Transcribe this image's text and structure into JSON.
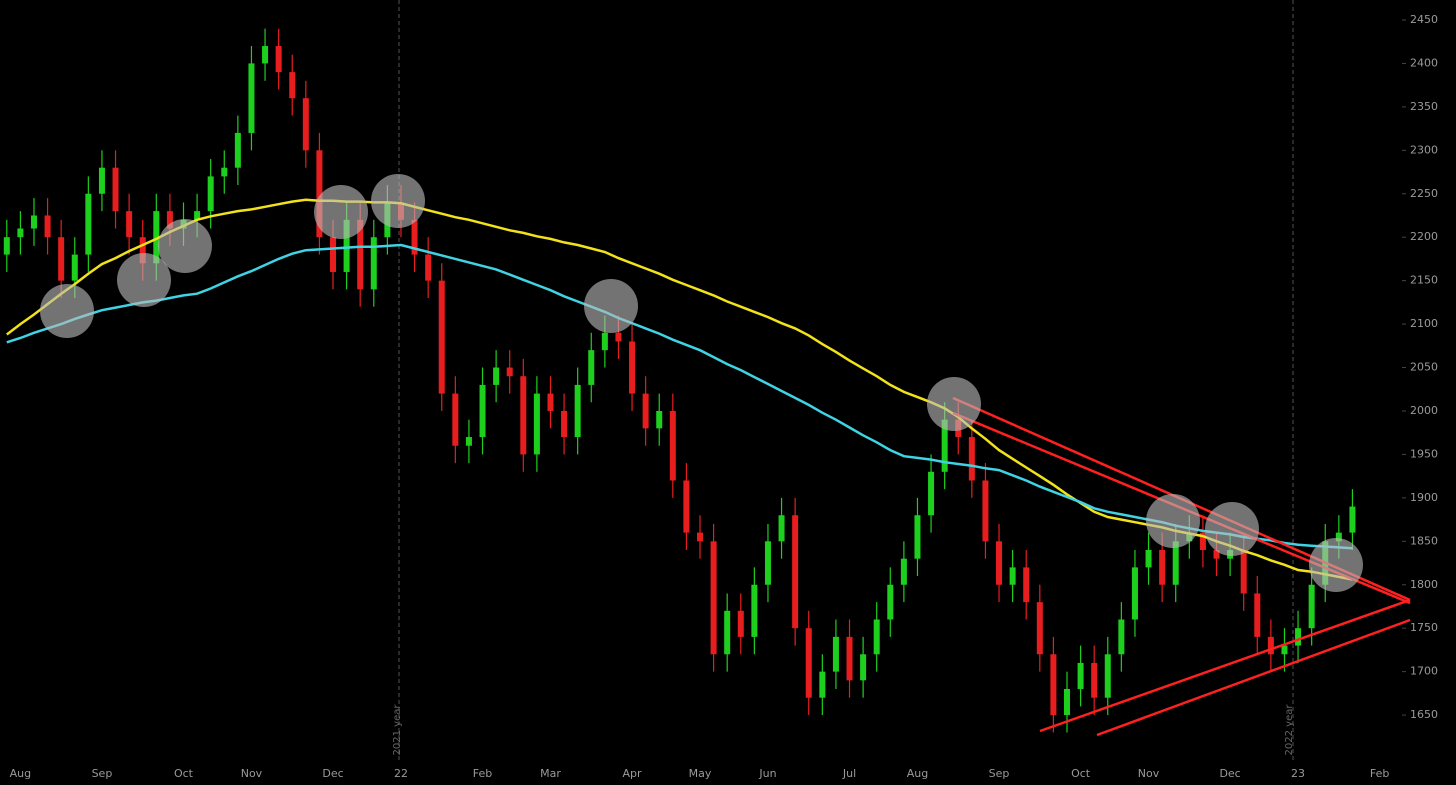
{
  "chart_data": {
    "type": "candlestick",
    "categories": [
      null,
      "Aug",
      null,
      null,
      null,
      null,
      null,
      "Sep",
      null,
      null,
      null,
      null,
      null,
      "Oct",
      null,
      null,
      null,
      null,
      "Nov",
      null,
      null,
      null,
      null,
      null,
      "Dec",
      null,
      null,
      null,
      null,
      "22",
      null,
      null,
      null,
      null,
      null,
      "Feb",
      null,
      null,
      null,
      null,
      "Mar",
      null,
      null,
      null,
      null,
      null,
      "Apr",
      null,
      null,
      null,
      null,
      "May",
      null,
      null,
      null,
      null,
      "Jun",
      null,
      null,
      null,
      null,
      null,
      "Jul",
      null,
      null,
      null,
      null,
      "Aug",
      null,
      null,
      null,
      null,
      null,
      "Sep",
      null,
      null,
      null,
      null,
      null,
      "Oct",
      null,
      null,
      null,
      null,
      "Nov",
      null,
      null,
      null,
      null,
      null,
      "Dec",
      null,
      null,
      null,
      null,
      "23",
      null,
      null,
      null,
      null,
      null,
      "Feb",
      null
    ],
    "open": [
      2180,
      2200,
      2210,
      2225,
      2200,
      2150,
      2180,
      2250,
      2280,
      2230,
      2200,
      2170,
      2230,
      2210,
      2220,
      2230,
      2270,
      2280,
      2320,
      2400,
      2420,
      2390,
      2360,
      2300,
      2200,
      2160,
      2220,
      2140,
      2200,
      2240,
      2220,
      2180,
      2150,
      2020,
      1960,
      1970,
      2030,
      2050,
      2040,
      1950,
      2020,
      2000,
      1970,
      2030,
      2070,
      2090,
      2080,
      2020,
      1980,
      2000,
      1920,
      1860,
      1850,
      1720,
      1770,
      1740,
      1800,
      1850,
      1880,
      1750,
      1670,
      1700,
      1740,
      1690,
      1720,
      1760,
      1800,
      1830,
      1880,
      1930,
      1990,
      1970,
      1920,
      1850,
      1800,
      1820,
      1780,
      1720,
      1650,
      1680,
      1710,
      1670,
      1720,
      1760,
      1820,
      1840,
      1800,
      1850,
      1860,
      1840,
      1830,
      1840,
      1790,
      1740,
      1720,
      1730,
      1750,
      1800,
      1850,
      1860,
      null,
      null,
      null
    ],
    "high": [
      2220,
      2230,
      2245,
      2245,
      2220,
      2200,
      2270,
      2300,
      2300,
      2250,
      2220,
      2250,
      2250,
      2240,
      2250,
      2290,
      2300,
      2340,
      2420,
      2440,
      2440,
      2410,
      2380,
      2320,
      2220,
      2240,
      2240,
      2220,
      2260,
      2260,
      2240,
      2200,
      2170,
      2040,
      1990,
      2050,
      2070,
      2070,
      2060,
      2040,
      2040,
      2020,
      2050,
      2090,
      2110,
      2110,
      2100,
      2040,
      2020,
      2020,
      1940,
      1880,
      1870,
      1790,
      1790,
      1820,
      1870,
      1900,
      1900,
      1770,
      1720,
      1760,
      1760,
      1740,
      1780,
      1820,
      1850,
      1900,
      1950,
      2010,
      2010,
      1990,
      1940,
      1870,
      1840,
      1840,
      1800,
      1740,
      1700,
      1730,
      1730,
      1740,
      1780,
      1840,
      1860,
      1860,
      1870,
      1880,
      1880,
      1860,
      1860,
      1860,
      1810,
      1760,
      1750,
      1770,
      1820,
      1870,
      1880,
      1910,
      null,
      null,
      null
    ],
    "low": [
      2160,
      2180,
      2190,
      2180,
      2130,
      2130,
      2160,
      2230,
      2210,
      2180,
      2150,
      2150,
      2190,
      2190,
      2200,
      2210,
      2250,
      2260,
      2300,
      2380,
      2370,
      2340,
      2280,
      2180,
      2140,
      2140,
      2120,
      2120,
      2180,
      2200,
      2160,
      2130,
      2000,
      1940,
      1940,
      1950,
      2010,
      2020,
      1930,
      1930,
      1980,
      1950,
      1950,
      2010,
      2050,
      2060,
      2000,
      1960,
      1960,
      1900,
      1840,
      1830,
      1700,
      1700,
      1720,
      1720,
      1780,
      1830,
      1730,
      1650,
      1650,
      1680,
      1670,
      1670,
      1700,
      1740,
      1780,
      1810,
      1860,
      1910,
      1950,
      1900,
      1830,
      1780,
      1780,
      1760,
      1700,
      1630,
      1630,
      1660,
      1650,
      1650,
      1700,
      1740,
      1800,
      1780,
      1780,
      1830,
      1820,
      1810,
      1810,
      1770,
      1720,
      1700,
      1700,
      1710,
      1730,
      1780,
      1830,
      1840,
      null,
      null,
      null
    ],
    "close": [
      2200,
      2210,
      2225,
      2200,
      2150,
      2180,
      2250,
      2280,
      2230,
      2200,
      2170,
      2230,
      2210,
      2220,
      2230,
      2270,
      2280,
      2320,
      2400,
      2420,
      2390,
      2360,
      2300,
      2200,
      2160,
      2220,
      2140,
      2200,
      2240,
      2220,
      2180,
      2150,
      2020,
      1960,
      1970,
      2030,
      2050,
      2040,
      1950,
      2020,
      2000,
      1970,
      2030,
      2070,
      2090,
      2080,
      2020,
      1980,
      2000,
      1920,
      1860,
      1850,
      1720,
      1770,
      1740,
      1800,
      1850,
      1880,
      1750,
      1670,
      1700,
      1740,
      1690,
      1720,
      1760,
      1800,
      1830,
      1880,
      1930,
      1990,
      1970,
      1920,
      1850,
      1800,
      1820,
      1780,
      1720,
      1650,
      1680,
      1710,
      1670,
      1720,
      1760,
      1820,
      1840,
      1800,
      1850,
      1860,
      1840,
      1830,
      1840,
      1790,
      1740,
      1720,
      1730,
      1750,
      1800,
      1850,
      1860,
      1890,
      null,
      null,
      null
    ],
    "up_color": "#1ed01e",
    "down_color": "#e81e1e",
    "overlays": [
      {
        "color": "#f2e21a",
        "values": [
          2088,
          2100,
          2111,
          2123,
          2135,
          2146,
          2158,
          2169,
          2176,
          2184,
          2191,
          2198,
          2206,
          2213,
          2220,
          2224,
          2227,
          2230,
          2232,
          2235,
          2238,
          2241,
          2243,
          2242,
          2242,
          2241,
          2241,
          2240,
          2240,
          2239,
          2235,
          2231,
          2227,
          2223,
          2220,
          2216,
          2212,
          2208,
          2205,
          2201,
          2198,
          2194,
          2191,
          2187,
          2183,
          2176,
          2170,
          2164,
          2158,
          2151,
          2145,
          2139,
          2133,
          2126,
          2120,
          2114,
          2108,
          2101,
          2095,
          2087,
          2077,
          2068,
          2058,
          2049,
          2040,
          2030,
          2022,
          2016,
          2010,
          2003,
          1993,
          1980,
          1968,
          1955,
          1945,
          1935,
          1925,
          1915,
          1904,
          1894,
          1884,
          1878,
          1875,
          1872,
          1869,
          1866,
          1862,
          1859,
          1856,
          1850,
          1845,
          1839,
          1834,
          1828,
          1823,
          1817,
          1815,
          1812,
          1809,
          1806,
          null,
          null,
          null
        ]
      },
      {
        "color": "#3fd3e3",
        "values": [
          2079,
          2084,
          2090,
          2095,
          2100,
          2106,
          2111,
          2116,
          2119,
          2122,
          2125,
          2127,
          2130,
          2133,
          2135,
          2141,
          2148,
          2155,
          2161,
          2168,
          2175,
          2181,
          2185,
          2186,
          2187,
          2188,
          2189,
          2189,
          2190,
          2191,
          2187,
          2183,
          2179,
          2175,
          2171,
          2167,
          2163,
          2157,
          2151,
          2145,
          2139,
          2132,
          2126,
          2120,
          2114,
          2107,
          2101,
          2095,
          2089,
          2082,
          2076,
          2070,
          2062,
          2054,
          2047,
          2039,
          2031,
          2023,
          2015,
          2007,
          1998,
          1990,
          1981,
          1972,
          1964,
          1955,
          1948,
          1946,
          1944,
          1941,
          1939,
          1937,
          1934,
          1932,
          1926,
          1920,
          1913,
          1907,
          1901,
          1895,
          1888,
          1884,
          1881,
          1878,
          1875,
          1872,
          1868,
          1865,
          1862,
          1860,
          1858,
          1855,
          1853,
          1851,
          1848,
          1846,
          1845,
          1844,
          1843,
          1842,
          null,
          null,
          null
        ]
      }
    ],
    "ylim": [
      1596,
      2473
    ],
    "yticks": [
      1650,
      1700,
      1750,
      1800,
      1850,
      1900,
      1950,
      2000,
      2050,
      2100,
      2150,
      2200,
      2250,
      2300,
      2350,
      2400,
      2450
    ],
    "annotations": [
      "2021 year",
      "2022 year"
    ]
  }
}
